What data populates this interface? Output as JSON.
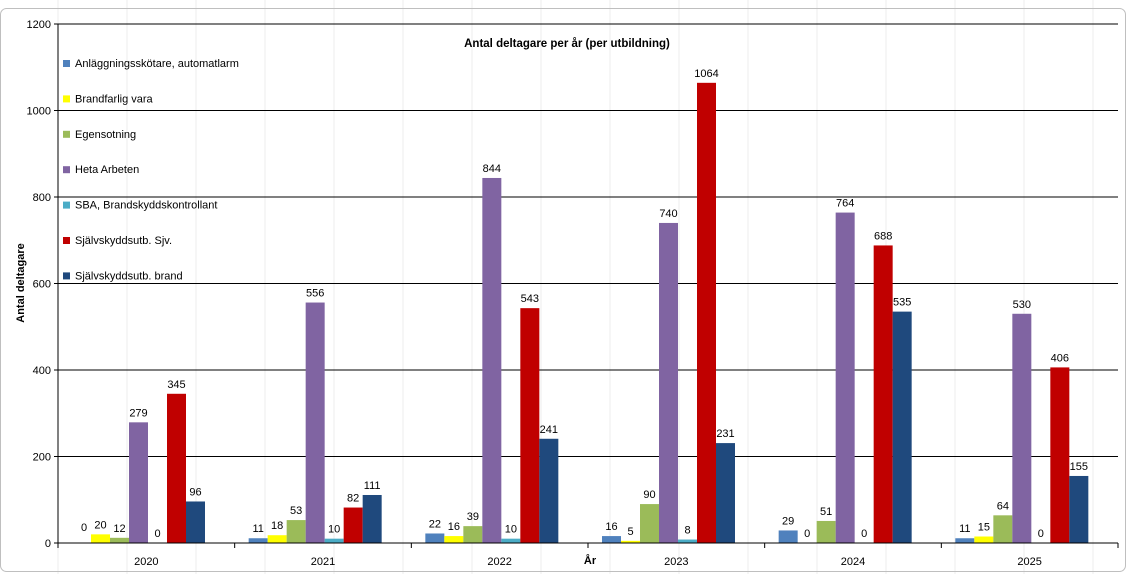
{
  "chart_data": {
    "type": "bar",
    "title": "Antal deltagare per år (per utbildning)",
    "xlabel": "År",
    "ylabel": "Antal deltagare",
    "ylim": [
      0,
      1200
    ],
    "yticks": [
      0,
      200,
      400,
      600,
      800,
      1000,
      1200
    ],
    "grid": true,
    "legend_position": "top-left",
    "categories": [
      "2020",
      "2021",
      "2022",
      "2023",
      "2024",
      "2025"
    ],
    "series": [
      {
        "name": "Anläggningsskötare, automatlarm",
        "color": "#4f81bd",
        "values": [
          null,
          11,
          22,
          16,
          29,
          11
        ],
        "labels": [
          "",
          "11",
          "22",
          "16",
          "29",
          "11"
        ]
      },
      {
        "name": "Brandfarlig vara",
        "color": "#ffff00",
        "values": [
          20,
          18,
          16,
          5,
          0,
          15
        ],
        "labels": [
          "20",
          "18",
          "16",
          "5",
          "0",
          "15"
        ]
      },
      {
        "name": "Egensotning",
        "color": "#9bbb59",
        "values": [
          12,
          53,
          39,
          90,
          51,
          64
        ],
        "labels": [
          "12",
          "53",
          "39",
          "90",
          "51",
          "64"
        ]
      },
      {
        "name": "Heta Arbeten",
        "color": "#8064a2",
        "values": [
          279,
          556,
          844,
          740,
          764,
          530
        ],
        "labels": [
          "279",
          "556",
          "844",
          "740",
          "764",
          "530"
        ]
      },
      {
        "name": "SBA, Brandskyddskontrollant",
        "color": "#4bacc6",
        "values": [
          0,
          10,
          10,
          8,
          0,
          0
        ],
        "labels": [
          "0",
          "10",
          "10",
          "8",
          "0",
          "0"
        ]
      },
      {
        "name": "Självskyddsutb. Sjv.",
        "color": "#c00000",
        "values": [
          345,
          82,
          543,
          1064,
          688,
          406
        ],
        "labels": [
          "345",
          "82",
          "543",
          "1064",
          "688",
          "406"
        ]
      },
      {
        "name": "Självskyddsutb. brand",
        "color": "#1f497d",
        "values": [
          96,
          111,
          241,
          231,
          535,
          155
        ],
        "labels": [
          "96",
          "111",
          "241",
          "231",
          "535",
          "155"
        ]
      }
    ],
    "first_group_leading_label": "0"
  }
}
